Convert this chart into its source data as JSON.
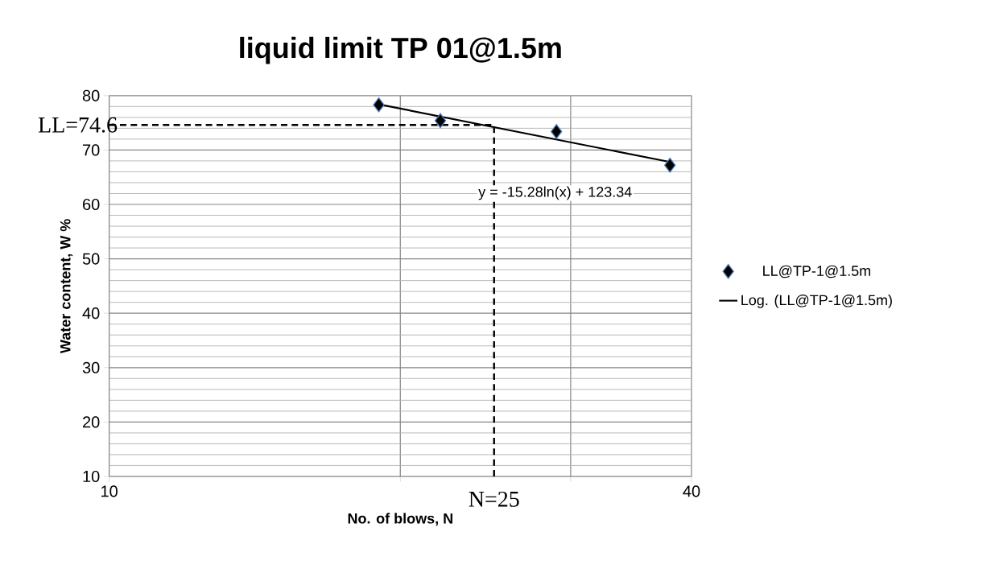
{
  "chart_data": {
    "type": "scatter",
    "title": "liquid limit TP 01@1.5m",
    "xlabel": "No. of blows, N",
    "ylabel": "Water content, W %",
    "log": "x",
    "xlim": [
      10,
      40
    ],
    "xticks": [
      10,
      {
        "value": 20,
        "label": null
      },
      {
        "value": 30,
        "label": null
      },
      40
    ],
    "ylim": [
      10,
      80
    ],
    "yticks": [
      10,
      20,
      30,
      40,
      50,
      60,
      70,
      80
    ],
    "grid": true,
    "legend": "right",
    "series": [
      {
        "name": "LL@TP-1@1.5m",
        "marker": "diamond",
        "color": "#000000",
        "x": [
          19,
          22,
          29,
          38
        ],
        "values": [
          78.3,
          75.4,
          73.4,
          67.2
        ]
      },
      {
        "name": "Log. (LL@TP-1@1.5m)",
        "type": "line",
        "color": "#000000",
        "line_style": "solid",
        "x": [
          19,
          38
        ],
        "values": [
          78.4,
          67.8
        ]
      }
    ],
    "ref_lines": [
      {
        "axis": "y",
        "value": 74.6,
        "label": "LL=74.6",
        "color": "#000000",
        "line_style": "dashed"
      },
      {
        "axis": "x",
        "value": 25,
        "label": "N=25",
        "color": "#000000",
        "line_style": "dashed"
      }
    ],
    "annotations": [
      "y = -15.28ln(x) + 123.34"
    ]
  }
}
